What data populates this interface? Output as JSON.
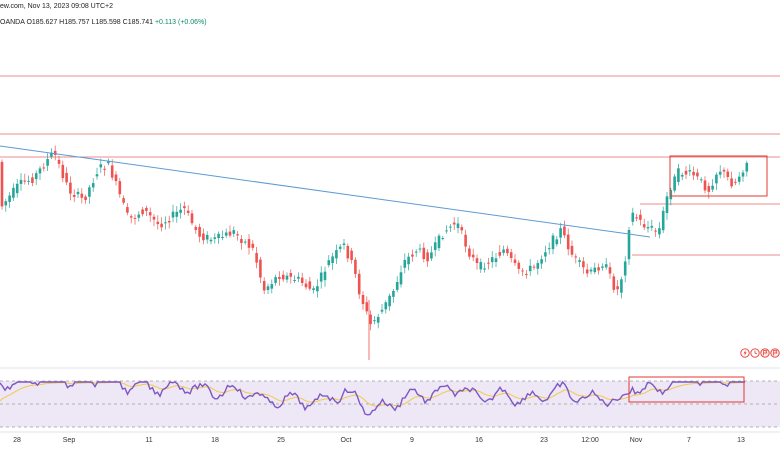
{
  "header": {
    "line1": "ew.com, Nov 13, 2023 09:08 UTC+2",
    "source": "OANDA",
    "open": "O185.627",
    "high": "H185.757",
    "low": "L185.598",
    "close": "C185.741",
    "change": "+0.113 (+0.06%)"
  },
  "x_axis": {
    "labels": [
      "28",
      "Sep",
      "11",
      "18",
      "25",
      "Oct",
      "9",
      "16",
      "23",
      "12:00",
      "Nov",
      "7",
      "13"
    ]
  },
  "colors": {
    "bull": "#26a69a",
    "bear": "#ef5350",
    "trendline": "#5b9bd5",
    "level_lines": "#e06666",
    "rsi_line": "#7e57c2",
    "rsi_ma": "#f2c94c",
    "rsi_band": "#ede7f6",
    "box": "#e53935"
  },
  "icons": [
    "bolt-icon",
    "clock-icon",
    "flag-icon",
    "flag-icon"
  ],
  "chart_data": {
    "type": "candlestick",
    "symbol": "OANDA",
    "rsi_panel": true,
    "horizontal_levels": true,
    "annotations": [
      "descending trendline",
      "consolidation box price",
      "consolidation box RSI"
    ]
  }
}
